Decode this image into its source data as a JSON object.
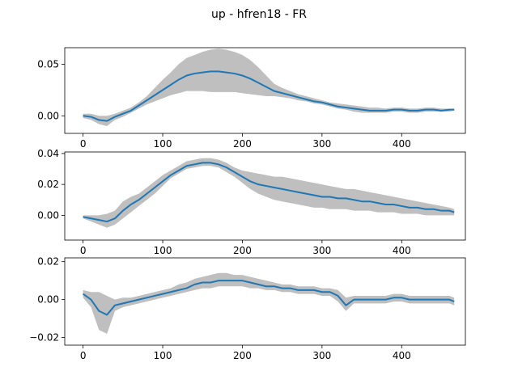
{
  "figure": {
    "title": "up - hfren18 - FR"
  },
  "colors": {
    "line": "#1f77b4",
    "band": "#bfbfbf",
    "axis": "#000000",
    "background": "#ffffff"
  },
  "chart_data": [
    {
      "type": "line",
      "title": "",
      "xlabel": "",
      "ylabel": "",
      "xlim": [
        -23,
        480
      ],
      "ylim": [
        -0.017,
        0.066
      ],
      "xticks": [
        0,
        100,
        200,
        300,
        400
      ],
      "yticks": [
        0.0,
        0.05
      ],
      "ytick_labels": [
        "0.00",
        "0.05"
      ],
      "grid": false,
      "band": "shaded gray range around mean",
      "x": [
        0,
        10,
        20,
        30,
        40,
        50,
        60,
        70,
        80,
        90,
        100,
        110,
        120,
        130,
        140,
        150,
        160,
        170,
        180,
        190,
        200,
        210,
        220,
        230,
        240,
        250,
        260,
        270,
        280,
        290,
        300,
        310,
        320,
        330,
        340,
        350,
        360,
        370,
        380,
        390,
        400,
        410,
        420,
        430,
        440,
        450,
        460,
        466
      ],
      "series": [
        {
          "mean": [
            0.0,
            -0.001,
            -0.004,
            -0.005,
            -0.001,
            0.002,
            0.005,
            0.01,
            0.015,
            0.02,
            0.025,
            0.03,
            0.035,
            0.039,
            0.041,
            0.042,
            0.043,
            0.043,
            0.042,
            0.041,
            0.039,
            0.036,
            0.032,
            0.028,
            0.024,
            0.022,
            0.02,
            0.018,
            0.016,
            0.014,
            0.013,
            0.011,
            0.009,
            0.008,
            0.007,
            0.006,
            0.005,
            0.005,
            0.005,
            0.006,
            0.006,
            0.005,
            0.005,
            0.006,
            0.006,
            0.005,
            0.006,
            0.006
          ],
          "lower": [
            -0.002,
            -0.004,
            -0.008,
            -0.01,
            -0.004,
            -0.001,
            0.003,
            0.007,
            0.011,
            0.014,
            0.017,
            0.02,
            0.022,
            0.024,
            0.024,
            0.024,
            0.023,
            0.023,
            0.023,
            0.023,
            0.022,
            0.021,
            0.02,
            0.019,
            0.019,
            0.018,
            0.017,
            0.015,
            0.014,
            0.012,
            0.011,
            0.009,
            0.007,
            0.006,
            0.004,
            0.003,
            0.003,
            0.003,
            0.003,
            0.004,
            0.004,
            0.003,
            0.003,
            0.004,
            0.004,
            0.004,
            0.004,
            0.005
          ],
          "upper": [
            0.002,
            0.002,
            0.0,
            0.0,
            0.002,
            0.005,
            0.008,
            0.013,
            0.019,
            0.027,
            0.035,
            0.042,
            0.05,
            0.056,
            0.059,
            0.062,
            0.064,
            0.065,
            0.064,
            0.062,
            0.059,
            0.054,
            0.047,
            0.039,
            0.031,
            0.027,
            0.024,
            0.021,
            0.019,
            0.017,
            0.015,
            0.013,
            0.012,
            0.011,
            0.01,
            0.009,
            0.008,
            0.008,
            0.007,
            0.008,
            0.008,
            0.007,
            0.007,
            0.008,
            0.008,
            0.007,
            0.007,
            0.007
          ]
        }
      ]
    },
    {
      "type": "line",
      "title": "",
      "xlabel": "",
      "ylabel": "",
      "xlim": [
        -23,
        480
      ],
      "ylim": [
        -0.016,
        0.041
      ],
      "xticks": [
        0,
        100,
        200,
        300,
        400
      ],
      "yticks": [
        0.0,
        0.02,
        0.04
      ],
      "ytick_labels": [
        "0.00",
        "0.02",
        "0.04"
      ],
      "grid": false,
      "band": "shaded gray range around mean",
      "x": [
        0,
        10,
        20,
        30,
        40,
        50,
        60,
        70,
        80,
        90,
        100,
        110,
        120,
        130,
        140,
        150,
        160,
        170,
        180,
        190,
        200,
        210,
        220,
        230,
        240,
        250,
        260,
        270,
        280,
        290,
        300,
        310,
        320,
        330,
        340,
        350,
        360,
        370,
        380,
        390,
        400,
        410,
        420,
        430,
        440,
        450,
        460,
        466
      ],
      "series": [
        {
          "mean": [
            -0.001,
            -0.002,
            -0.003,
            -0.004,
            -0.002,
            0.003,
            0.007,
            0.01,
            0.014,
            0.018,
            0.022,
            0.026,
            0.029,
            0.032,
            0.033,
            0.034,
            0.034,
            0.033,
            0.031,
            0.028,
            0.025,
            0.022,
            0.02,
            0.019,
            0.018,
            0.017,
            0.016,
            0.015,
            0.014,
            0.013,
            0.012,
            0.012,
            0.011,
            0.011,
            0.01,
            0.009,
            0.009,
            0.008,
            0.007,
            0.007,
            0.006,
            0.005,
            0.005,
            0.004,
            0.004,
            0.003,
            0.003,
            0.002
          ],
          "lower": [
            -0.002,
            -0.004,
            -0.006,
            -0.008,
            -0.006,
            -0.002,
            0.002,
            0.006,
            0.01,
            0.014,
            0.019,
            0.024,
            0.027,
            0.03,
            0.031,
            0.032,
            0.032,
            0.031,
            0.028,
            0.025,
            0.021,
            0.017,
            0.014,
            0.012,
            0.01,
            0.009,
            0.008,
            0.007,
            0.006,
            0.005,
            0.005,
            0.004,
            0.004,
            0.004,
            0.003,
            0.003,
            0.003,
            0.002,
            0.002,
            0.002,
            0.001,
            0.001,
            0.001,
            0.0,
            0.0,
            0.0,
            0.0,
            0.0
          ],
          "upper": [
            0.0,
            0.0,
            0.0,
            0.001,
            0.003,
            0.009,
            0.012,
            0.014,
            0.018,
            0.022,
            0.026,
            0.029,
            0.032,
            0.035,
            0.036,
            0.037,
            0.037,
            0.036,
            0.034,
            0.031,
            0.029,
            0.028,
            0.027,
            0.026,
            0.025,
            0.025,
            0.024,
            0.023,
            0.022,
            0.021,
            0.02,
            0.019,
            0.018,
            0.017,
            0.017,
            0.016,
            0.015,
            0.014,
            0.013,
            0.012,
            0.011,
            0.01,
            0.009,
            0.008,
            0.007,
            0.006,
            0.005,
            0.004
          ]
        }
      ]
    },
    {
      "type": "line",
      "title": "",
      "xlabel": "",
      "ylabel": "",
      "xlim": [
        -23,
        480
      ],
      "ylim": [
        -0.024,
        0.022
      ],
      "xticks": [
        0,
        100,
        200,
        300,
        400
      ],
      "yticks": [
        -0.02,
        0.0,
        0.02
      ],
      "ytick_labels": [
        "−0.02",
        "0.00",
        "0.02"
      ],
      "grid": false,
      "band": "shaded gray range around mean",
      "x": [
        0,
        10,
        20,
        30,
        40,
        50,
        60,
        70,
        80,
        90,
        100,
        110,
        120,
        130,
        140,
        150,
        160,
        170,
        180,
        190,
        200,
        210,
        220,
        230,
        240,
        250,
        260,
        270,
        280,
        290,
        300,
        310,
        320,
        330,
        340,
        350,
        360,
        370,
        380,
        390,
        400,
        410,
        420,
        430,
        440,
        450,
        460,
        466
      ],
      "series": [
        {
          "mean": [
            0.003,
            0.0,
            -0.006,
            -0.008,
            -0.003,
            -0.002,
            -0.001,
            0.0,
            0.001,
            0.002,
            0.003,
            0.004,
            0.005,
            0.006,
            0.008,
            0.009,
            0.009,
            0.01,
            0.01,
            0.01,
            0.01,
            0.009,
            0.008,
            0.007,
            0.007,
            0.006,
            0.006,
            0.005,
            0.005,
            0.005,
            0.004,
            0.004,
            0.002,
            -0.003,
            0.0,
            0.0,
            0.0,
            0.0,
            0.0,
            0.001,
            0.001,
            0.0,
            0.0,
            0.0,
            0.0,
            0.0,
            0.0,
            -0.001
          ],
          "lower": [
            0.001,
            -0.004,
            -0.016,
            -0.018,
            -0.006,
            -0.004,
            -0.003,
            -0.002,
            -0.001,
            0.0,
            0.001,
            0.002,
            0.003,
            0.004,
            0.005,
            0.006,
            0.006,
            0.007,
            0.007,
            0.007,
            0.007,
            0.006,
            0.006,
            0.005,
            0.005,
            0.004,
            0.004,
            0.003,
            0.003,
            0.003,
            0.002,
            0.002,
            -0.001,
            -0.006,
            -0.002,
            -0.002,
            -0.002,
            -0.002,
            -0.002,
            -0.001,
            -0.001,
            -0.002,
            -0.002,
            -0.002,
            -0.002,
            -0.002,
            -0.002,
            -0.003
          ],
          "upper": [
            0.005,
            0.004,
            0.004,
            0.002,
            0.0,
            0.001,
            0.001,
            0.002,
            0.003,
            0.004,
            0.005,
            0.006,
            0.008,
            0.009,
            0.011,
            0.012,
            0.013,
            0.014,
            0.014,
            0.013,
            0.013,
            0.012,
            0.011,
            0.01,
            0.009,
            0.008,
            0.008,
            0.007,
            0.007,
            0.007,
            0.006,
            0.006,
            0.005,
            0.001,
            0.002,
            0.002,
            0.002,
            0.002,
            0.002,
            0.003,
            0.003,
            0.002,
            0.002,
            0.002,
            0.002,
            0.002,
            0.002,
            0.001
          ]
        }
      ]
    }
  ]
}
